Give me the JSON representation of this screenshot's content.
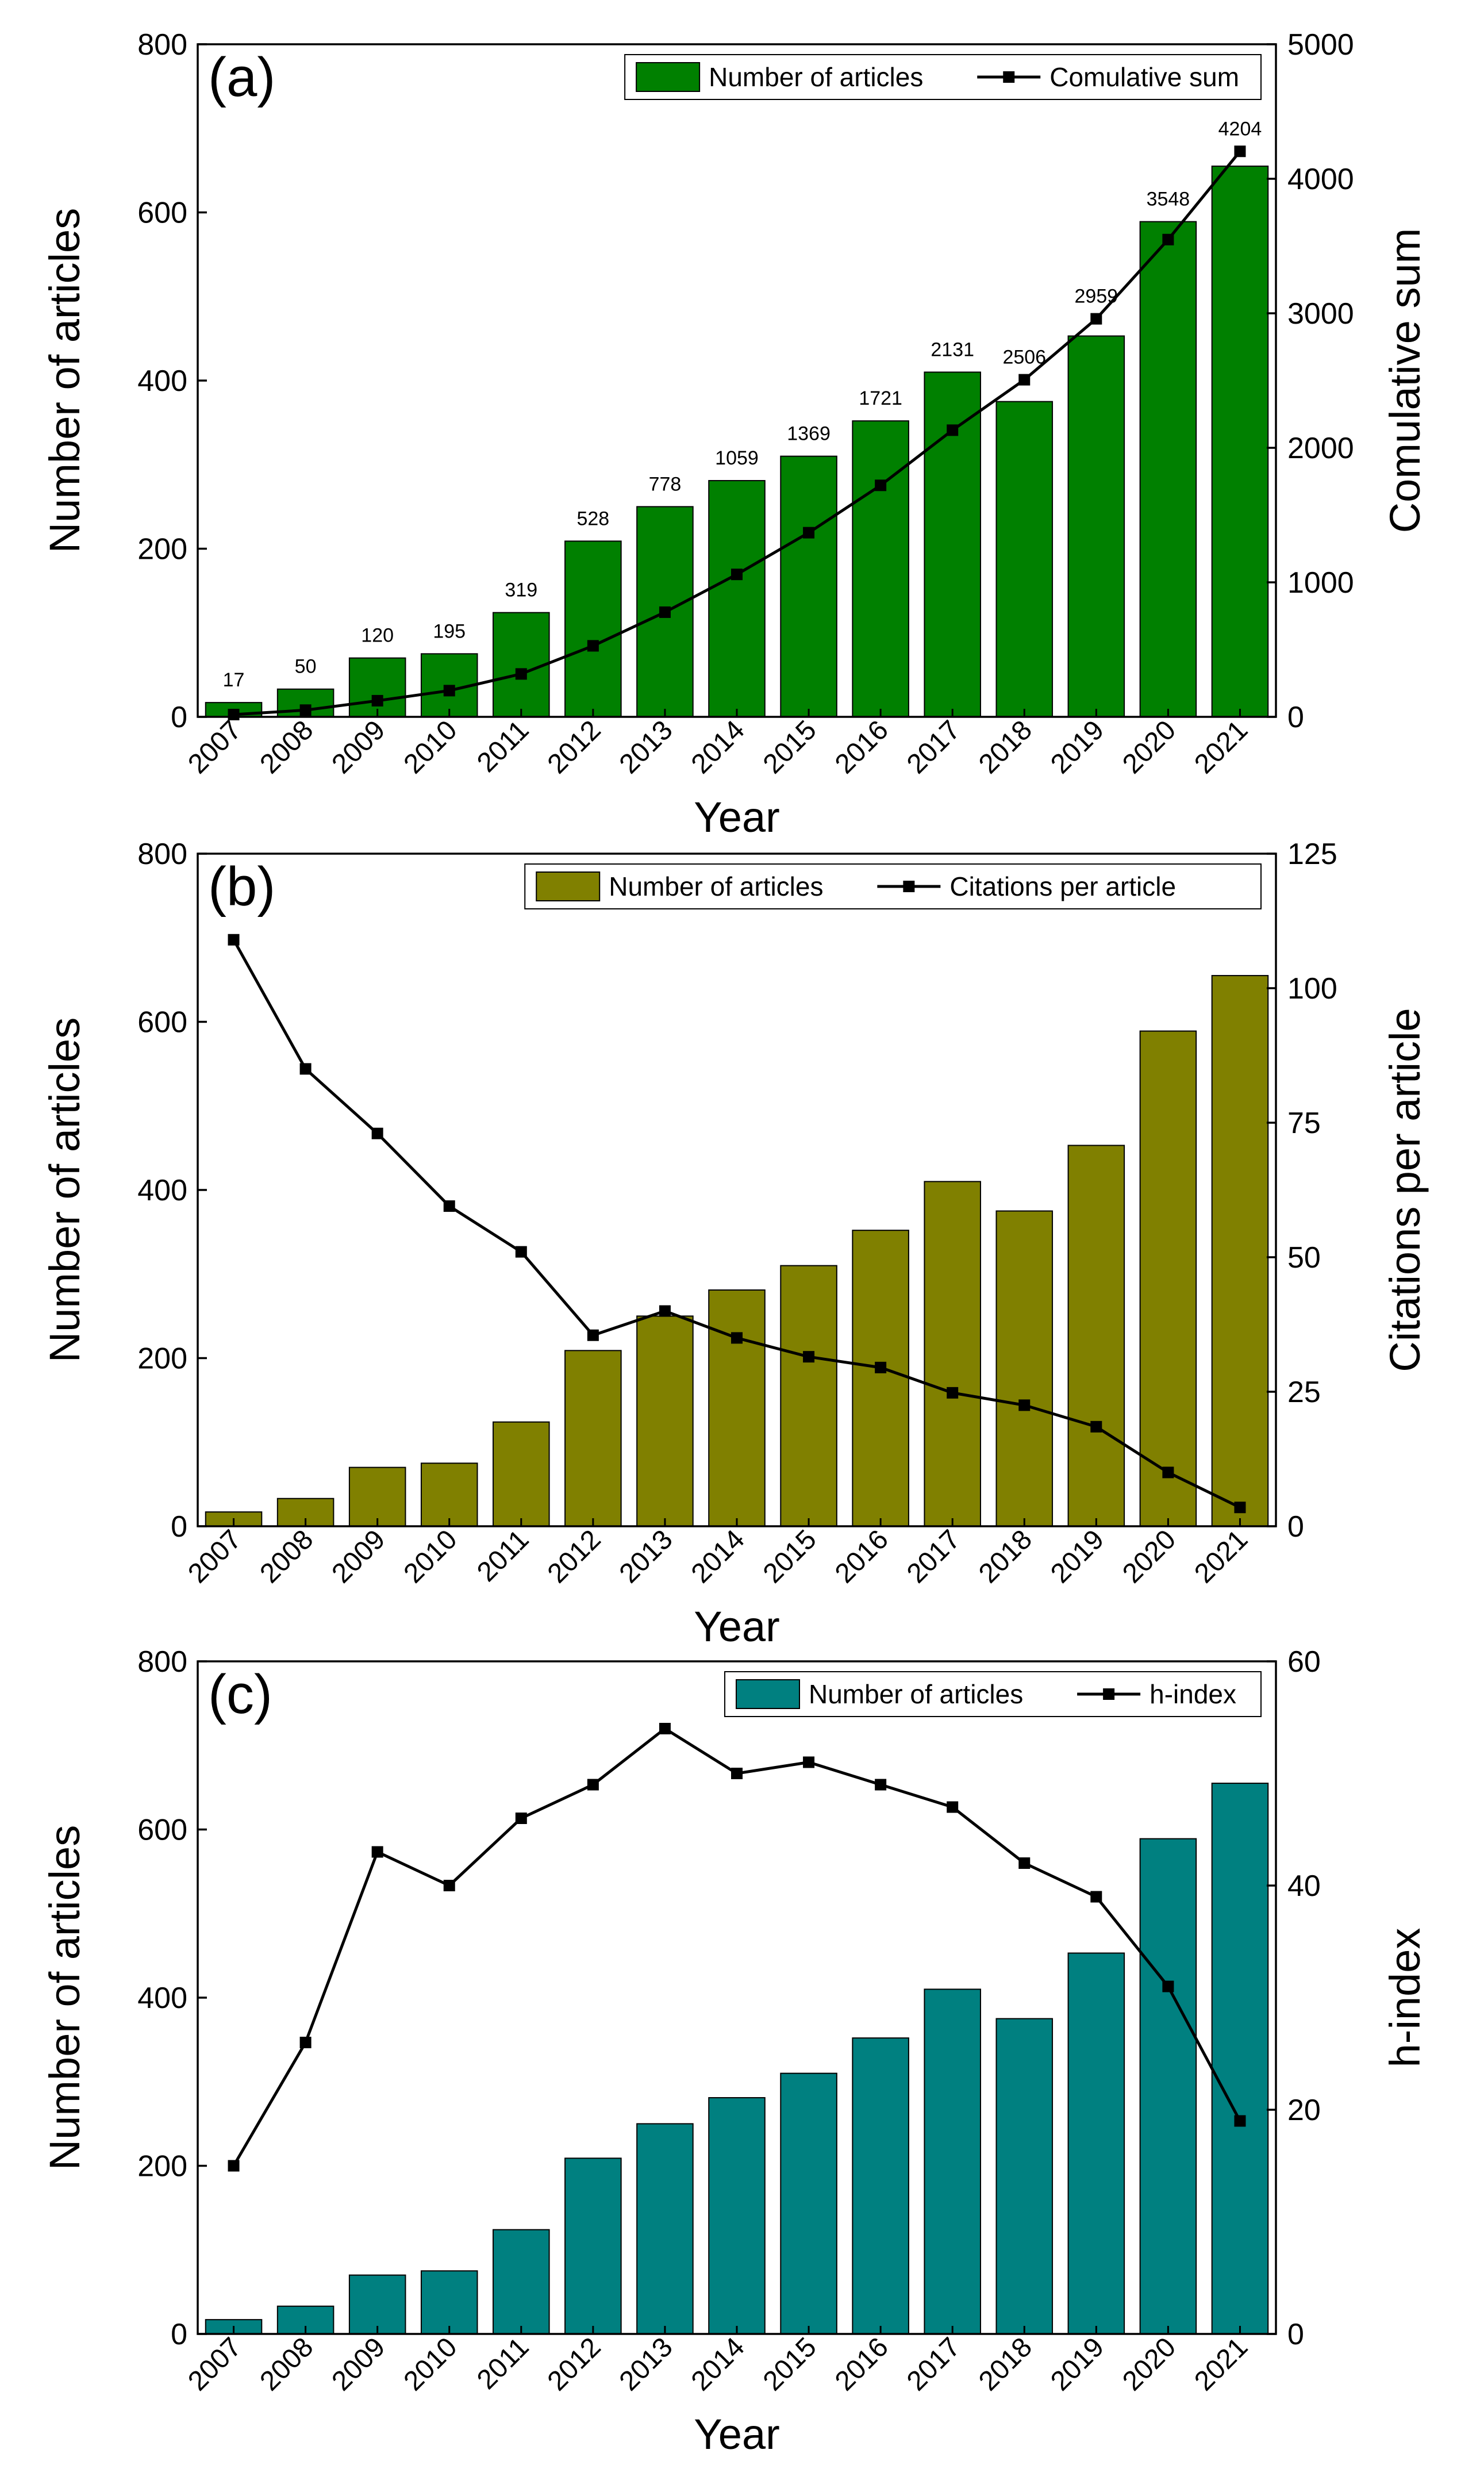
{
  "chart_data": [
    {
      "type": "bar",
      "panel_label": "(a)",
      "categories": [
        "2007",
        "2008",
        "2009",
        "2010",
        "2011",
        "2012",
        "2013",
        "2014",
        "2015",
        "2016",
        "2017",
        "2018",
        "2019",
        "2020",
        "2021"
      ],
      "series": [
        {
          "name": "Number of articles",
          "kind": "bar",
          "axis": "left",
          "color": "#008000",
          "values": [
            17,
            33,
            70,
            75,
            124,
            209,
            250,
            281,
            310,
            352,
            410,
            375,
            453,
            589,
            655
          ]
        },
        {
          "name": "Comulative sum",
          "kind": "line",
          "axis": "right",
          "color": "#000000",
          "values": [
            17,
            50,
            120,
            195,
            319,
            528,
            778,
            1059,
            1369,
            1721,
            2131,
            2506,
            2959,
            3548,
            4204
          ],
          "data_labels": [
            "17",
            "50",
            "120",
            "195",
            "319",
            "528",
            "778",
            "1059",
            "1369",
            "1721",
            "2131",
            "2506",
            "2959",
            "3548",
            "4204"
          ]
        }
      ],
      "xlabel": "Year",
      "ylabel": "Number of articles",
      "ylabel_right": "Comulative sum",
      "ylim": [
        0,
        800
      ],
      "ylim_right": [
        0,
        5000
      ],
      "yticks": [
        "0",
        "200",
        "400",
        "600",
        "800"
      ],
      "yticks_right": [
        "0",
        "1000",
        "2000",
        "3000",
        "4000",
        "5000"
      ],
      "legend_position": "top-right"
    },
    {
      "type": "bar",
      "panel_label": "(b)",
      "categories": [
        "2007",
        "2008",
        "2009",
        "2010",
        "2011",
        "2012",
        "2013",
        "2014",
        "2015",
        "2016",
        "2017",
        "2018",
        "2019",
        "2020",
        "2021"
      ],
      "series": [
        {
          "name": "Number of articles",
          "kind": "bar",
          "axis": "left",
          "color": "#808000",
          "values": [
            17,
            33,
            70,
            75,
            124,
            209,
            250,
            281,
            310,
            352,
            410,
            375,
            453,
            589,
            655
          ]
        },
        {
          "name": "Citations per article",
          "kind": "line",
          "axis": "right",
          "color": "#000000",
          "values": [
            109,
            85,
            73,
            59.5,
            51,
            35.5,
            40,
            35,
            31.5,
            29.5,
            24.8,
            22.5,
            18.5,
            10,
            3.5
          ]
        }
      ],
      "xlabel": "Year",
      "ylabel": "Number of articles",
      "ylabel_right": "Citations per article",
      "ylim": [
        0,
        800
      ],
      "ylim_right": [
        0,
        125
      ],
      "yticks": [
        "0",
        "200",
        "400",
        "600",
        "800"
      ],
      "yticks_right": [
        "0",
        "25",
        "50",
        "75",
        "100",
        "125"
      ],
      "legend_position": "top-right"
    },
    {
      "type": "bar",
      "panel_label": "(c)",
      "categories": [
        "2007",
        "2008",
        "2009",
        "2010",
        "2011",
        "2012",
        "2013",
        "2014",
        "2015",
        "2016",
        "2017",
        "2018",
        "2019",
        "2020",
        "2021"
      ],
      "series": [
        {
          "name": "Number of articles",
          "kind": "bar",
          "axis": "left",
          "color": "#008080",
          "values": [
            17,
            33,
            70,
            75,
            124,
            209,
            250,
            281,
            310,
            352,
            410,
            375,
            453,
            589,
            655
          ]
        },
        {
          "name": "h-index",
          "kind": "line",
          "axis": "right",
          "color": "#000000",
          "values": [
            15,
            26,
            43,
            40,
            46,
            49,
            54,
            50,
            51,
            49,
            47,
            42,
            39,
            31,
            19
          ]
        }
      ],
      "xlabel": "Year",
      "ylabel": "Number of articles",
      "ylabel_right": "h-index",
      "ylim": [
        0,
        800
      ],
      "ylim_right": [
        0,
        60
      ],
      "yticks": [
        "0",
        "200",
        "400",
        "600",
        "800"
      ],
      "yticks_right": [
        "0",
        "20",
        "40",
        "60"
      ],
      "legend_position": "top-right"
    }
  ]
}
